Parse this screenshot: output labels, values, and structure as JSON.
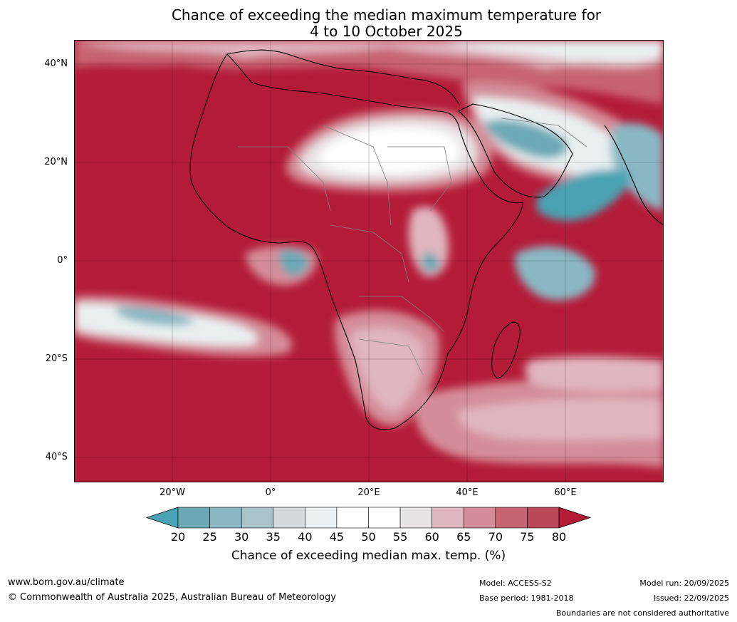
{
  "title": {
    "line1": "Chance of exceeding the median maximum temperature for",
    "line2": "4 to 10 October 2025"
  },
  "map": {
    "region": "Africa",
    "background_color": "#b41b38",
    "lat_range": [
      "45°S",
      "45°N"
    ],
    "lon_range": [
      "40°W",
      "80°E"
    ],
    "lat_labels": [
      "40°N",
      "20°N",
      "0°",
      "20°S",
      "40°S"
    ],
    "lon_labels": [
      "20°W",
      "0°",
      "20°E",
      "40°E",
      "60°E"
    ],
    "coastline_color": "#000000",
    "border_color": "#808080"
  },
  "colorbar": {
    "ticks": [
      "20",
      "25",
      "30",
      "35",
      "40",
      "45",
      "50",
      "55",
      "60",
      "65",
      "70",
      "75",
      "80"
    ],
    "colors": [
      "#4aa3b4",
      "#6aa9b5",
      "#89b8c4",
      "#a8c3ca",
      "#d3d9dc",
      "#eaf0f2",
      "#ffffff",
      "#ffffff",
      "#e8e3e6",
      "#e0b6bf",
      "#d48d98",
      "#c76472",
      "#bc4758",
      "#b41b38"
    ],
    "label": "Chance of exceeding median max. temp. (%)"
  },
  "footer": {
    "url": "www.bom.gov.au/climate",
    "copyright": "© Commonwealth of Australia 2025, Australian Bureau of Meteorology",
    "model": "Model: ACCESS-S2",
    "base_period": "Base period: 1981-2018",
    "model_run": "Model run: 20/09/2025",
    "issued": "Issued: 22/09/2025",
    "boundaries_note": "Boundaries are not considered authoritative"
  }
}
